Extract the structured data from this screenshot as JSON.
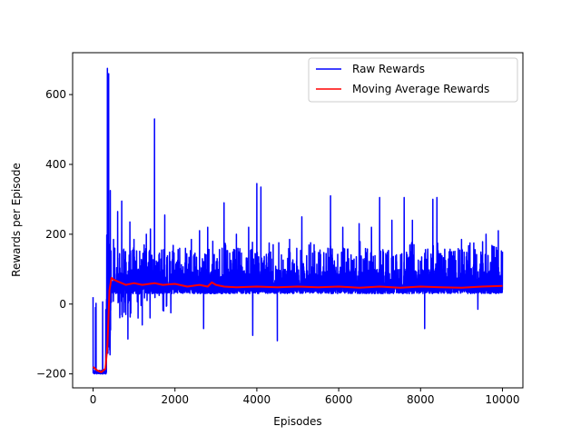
{
  "chart_data": {
    "type": "line",
    "title": "",
    "xlabel": "Episodes",
    "ylabel": "Rewards per Episode",
    "xlim": [
      -500,
      10500
    ],
    "ylim": [
      -240,
      720
    ],
    "xticks": [
      0,
      2000,
      4000,
      6000,
      8000,
      10000
    ],
    "xtick_labels": [
      "0",
      "2000",
      "4000",
      "6000",
      "8000",
      "10000"
    ],
    "yticks": [
      -200,
      0,
      200,
      400,
      600
    ],
    "ytick_labels": [
      "−200",
      "0",
      "200",
      "400",
      "600"
    ],
    "grid": false,
    "legend": {
      "placement": "top-right",
      "entries": [
        "Raw Rewards",
        "Moving Average Rewards"
      ]
    },
    "series": [
      {
        "name": "Raw Rewards",
        "color": "#0000ff",
        "peaks": [
          [
            0,
            20
          ],
          [
            120,
            -195
          ],
          [
            250,
            -200
          ],
          [
            330,
            15
          ],
          [
            350,
            675
          ],
          [
            380,
            660
          ],
          [
            420,
            325
          ],
          [
            500,
            185
          ],
          [
            600,
            265
          ],
          [
            700,
            295
          ],
          [
            800,
            240
          ],
          [
            900,
            235
          ],
          [
            1000,
            185
          ],
          [
            1200,
            375
          ],
          [
            1300,
            200
          ],
          [
            1400,
            215
          ],
          [
            1500,
            530
          ],
          [
            1750,
            255
          ],
          [
            1900,
            165
          ],
          [
            2100,
            120
          ],
          [
            2400,
            185
          ],
          [
            2600,
            210
          ],
          [
            2800,
            220
          ],
          [
            3200,
            290
          ],
          [
            3500,
            200
          ],
          [
            3800,
            220
          ],
          [
            4000,
            345
          ],
          [
            4100,
            335
          ],
          [
            4400,
            170
          ],
          [
            4800,
            185
          ],
          [
            5100,
            250
          ],
          [
            5400,
            170
          ],
          [
            5800,
            310
          ],
          [
            6100,
            220
          ],
          [
            6500,
            230
          ],
          [
            6800,
            220
          ],
          [
            7000,
            305
          ],
          [
            7300,
            240
          ],
          [
            7600,
            305
          ],
          [
            7800,
            240
          ],
          [
            8100,
            270
          ],
          [
            8300,
            300
          ],
          [
            8400,
            305
          ],
          [
            8700,
            150
          ],
          [
            9000,
            185
          ],
          [
            9300,
            175
          ],
          [
            9600,
            200
          ],
          [
            9900,
            210
          ],
          [
            10000,
            150
          ]
        ],
        "troughs": [
          [
            800,
            -30
          ],
          [
            850,
            -100
          ],
          [
            1100,
            -40
          ],
          [
            1200,
            -60
          ],
          [
            1900,
            -25
          ],
          [
            2700,
            -70
          ],
          [
            3900,
            -90
          ],
          [
            4500,
            -105
          ],
          [
            8100,
            -70
          ],
          [
            9400,
            -15
          ]
        ]
      },
      {
        "name": "Moving Average Rewards",
        "color": "#ff0000",
        "x": [
          0,
          100,
          200,
          300,
          350,
          400,
          450,
          500,
          600,
          700,
          800,
          1000,
          1200,
          1500,
          1700,
          2000,
          2300,
          2600,
          2800,
          2900,
          3000,
          3200,
          3500,
          4000,
          4500,
          5000,
          5500,
          6000,
          6500,
          7000,
          7500,
          8000,
          8500,
          9000,
          9500,
          10000
        ],
        "y": [
          -180,
          -190,
          -195,
          -185,
          -120,
          40,
          75,
          70,
          65,
          60,
          55,
          60,
          55,
          60,
          55,
          58,
          50,
          55,
          50,
          62,
          55,
          50,
          48,
          50,
          48,
          50,
          48,
          50,
          47,
          50,
          47,
          50,
          48,
          47,
          50,
          52
        ]
      }
    ]
  }
}
